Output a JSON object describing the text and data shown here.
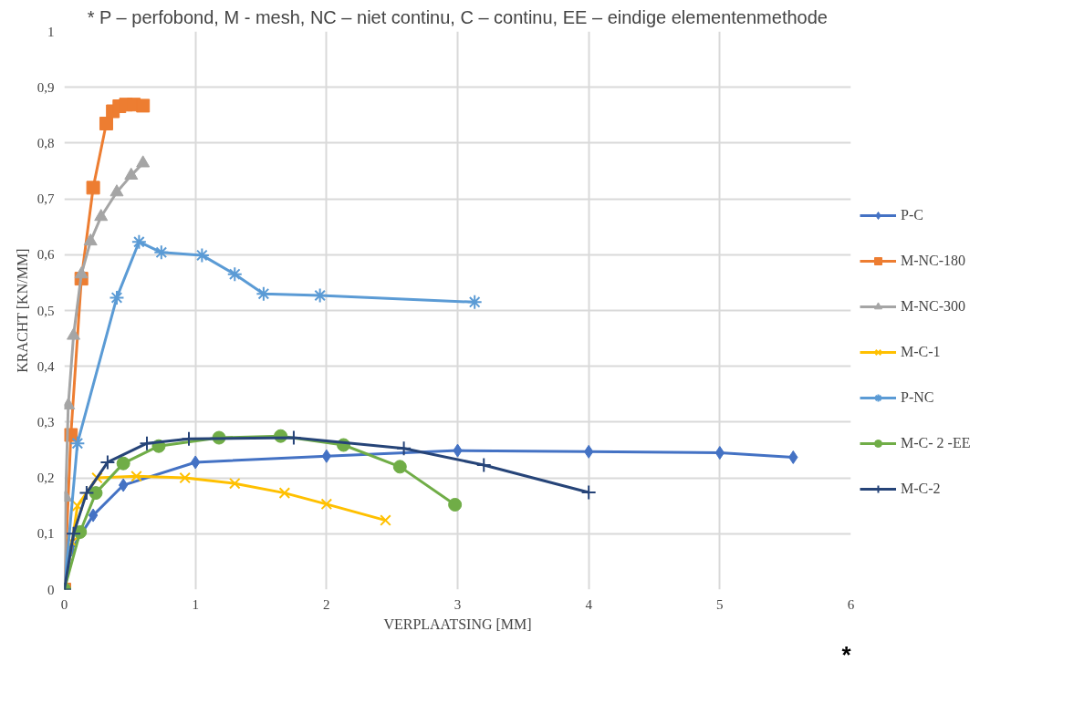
{
  "chart_data": {
    "type": "line",
    "title": "* P – perfobond, M - mesh, NC – niet continu, C – continu, EE – eindige elementenmethode",
    "xlabel": "VERPLAATSING [MM]",
    "ylabel": "KRACHT [KN/MM]",
    "annotations": [
      "*"
    ],
    "xlim": [
      0,
      6
    ],
    "xticks": [
      0,
      1,
      2,
      3,
      4,
      5,
      6
    ],
    "ylim": [
      0,
      1
    ],
    "yticks": [
      0,
      {
        "value": 0.1,
        "label": "0,1"
      },
      {
        "value": 0.2,
        "label": "0,2"
      },
      {
        "value": 0.3,
        "label": "0,3"
      },
      {
        "value": 0.4,
        "label": "0,4"
      },
      {
        "value": 0.5,
        "label": "0,5"
      },
      {
        "value": 0.6,
        "label": "0,6"
      },
      {
        "value": 0.7,
        "label": "0,7"
      },
      {
        "value": 0.8,
        "label": "0,8"
      },
      {
        "value": 0.9,
        "label": "0,9"
      },
      1
    ],
    "grid": true,
    "legend": "right",
    "line_style": "solid",
    "series": [
      {
        "name": "P-C",
        "color": "#4472c4",
        "marker": "diamond",
        "x": [
          0,
          0.05,
          0.22,
          0.45,
          1.0,
          2.0,
          3.0,
          4.0,
          5.0,
          5.56
        ],
        "values": [
          0,
          0.07,
          0.133,
          0.187,
          0.228,
          0.239,
          0.249,
          0.247,
          0.245,
          0.237
        ]
      },
      {
        "name": "M-NC-180",
        "color": "#ed7d31",
        "marker": "square",
        "x": [
          0,
          0.05,
          0.13,
          0.22,
          0.32,
          0.37,
          0.42,
          0.47,
          0.53,
          0.6
        ],
        "values": [
          0,
          0.277,
          0.557,
          0.72,
          0.835,
          0.857,
          0.866,
          0.869,
          0.869,
          0.867
        ]
      },
      {
        "name": "M-NC-300",
        "color": "#a5a5a5",
        "marker": "triangle",
        "x": [
          0,
          0.01,
          0.03,
          0.07,
          0.13,
          0.2,
          0.28,
          0.4,
          0.51,
          0.6
        ],
        "values": [
          0,
          0.165,
          0.33,
          0.455,
          0.565,
          0.624,
          0.668,
          0.712,
          0.742,
          0.764
        ]
      },
      {
        "name": "M-C-1",
        "color": "#ffc000",
        "marker": "x",
        "x": [
          0,
          0.06,
          0.1,
          0.25,
          0.55,
          0.92,
          1.3,
          1.68,
          2.0,
          2.45
        ],
        "values": [
          0,
          0.085,
          0.15,
          0.2,
          0.203,
          0.2,
          0.19,
          0.173,
          0.153,
          0.124
        ]
      },
      {
        "name": "P-NC",
        "color": "#5b9bd5",
        "marker": "cross",
        "x": [
          0,
          0.1,
          0.4,
          0.57,
          0.74,
          1.05,
          1.3,
          1.52,
          1.95,
          3.13
        ],
        "values": [
          0,
          0.262,
          0.523,
          0.623,
          0.604,
          0.599,
          0.565,
          0.53,
          0.527,
          0.515
        ]
      },
      {
        "name": "M-C- 2 -EE",
        "color": "#70ad47",
        "marker": "circle",
        "x": [
          0,
          0.12,
          0.24,
          0.45,
          0.72,
          1.18,
          1.65,
          2.13,
          2.56,
          2.98
        ],
        "values": [
          0,
          0.103,
          0.173,
          0.226,
          0.257,
          0.272,
          0.275,
          0.259,
          0.22,
          0.152
        ]
      },
      {
        "name": "M-C-2",
        "color": "#264478",
        "marker": "plus",
        "x": [
          0,
          0.07,
          0.17,
          0.33,
          0.63,
          0.95,
          1.75,
          2.59,
          3.2,
          4.0
        ],
        "values": [
          0,
          0.1,
          0.173,
          0.228,
          0.262,
          0.27,
          0.272,
          0.253,
          0.223,
          0.174
        ]
      }
    ]
  }
}
